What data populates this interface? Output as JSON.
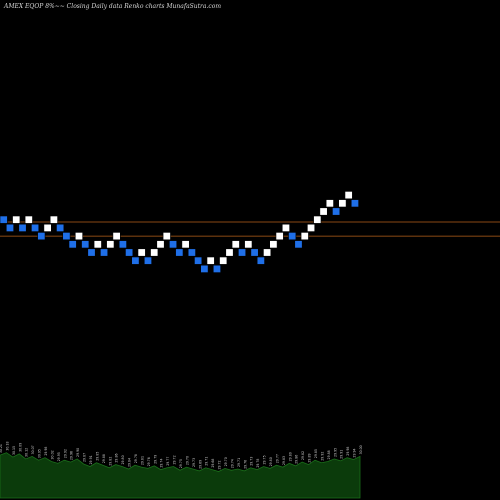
{
  "title": "AMEX  EQOP 8%~~  Closing Daily data  Renko  charts MunafaSutra.com",
  "colors": {
    "background": "#000000",
    "up_brick": "#ffffff",
    "down_brick": "#1f6fe8",
    "brick_edge": "#000000",
    "level_line": "#b8621a",
    "volume_fill": "#0b3b0b",
    "volume_line": "#1a6e1a"
  },
  "chart_data": {
    "type": "renko",
    "bricks": [
      {
        "i": 0,
        "dir": "down",
        "level": 0
      },
      {
        "i": 1,
        "dir": "down",
        "level": -1
      },
      {
        "i": 2,
        "dir": "up",
        "level": 0
      },
      {
        "i": 3,
        "dir": "down",
        "level": -1
      },
      {
        "i": 4,
        "dir": "up",
        "level": 0
      },
      {
        "i": 5,
        "dir": "down",
        "level": -1
      },
      {
        "i": 6,
        "dir": "down",
        "level": -2
      },
      {
        "i": 7,
        "dir": "up",
        "level": -1
      },
      {
        "i": 8,
        "dir": "up",
        "level": 0
      },
      {
        "i": 9,
        "dir": "down",
        "level": -1
      },
      {
        "i": 10,
        "dir": "down",
        "level": -2
      },
      {
        "i": 11,
        "dir": "down",
        "level": -3
      },
      {
        "i": 12,
        "dir": "up",
        "level": -2
      },
      {
        "i": 13,
        "dir": "down",
        "level": -3
      },
      {
        "i": 14,
        "dir": "down",
        "level": -4
      },
      {
        "i": 15,
        "dir": "up",
        "level": -3
      },
      {
        "i": 16,
        "dir": "down",
        "level": -4
      },
      {
        "i": 17,
        "dir": "up",
        "level": -3
      },
      {
        "i": 18,
        "dir": "up",
        "level": -2
      },
      {
        "i": 19,
        "dir": "down",
        "level": -3
      },
      {
        "i": 20,
        "dir": "down",
        "level": -4
      },
      {
        "i": 21,
        "dir": "down",
        "level": -5
      },
      {
        "i": 22,
        "dir": "up",
        "level": -4
      },
      {
        "i": 23,
        "dir": "down",
        "level": -5
      },
      {
        "i": 24,
        "dir": "up",
        "level": -4
      },
      {
        "i": 25,
        "dir": "up",
        "level": -3
      },
      {
        "i": 26,
        "dir": "up",
        "level": -2
      },
      {
        "i": 27,
        "dir": "down",
        "level": -3
      },
      {
        "i": 28,
        "dir": "down",
        "level": -4
      },
      {
        "i": 29,
        "dir": "up",
        "level": -3
      },
      {
        "i": 30,
        "dir": "down",
        "level": -4
      },
      {
        "i": 31,
        "dir": "down",
        "level": -5
      },
      {
        "i": 32,
        "dir": "down",
        "level": -6
      },
      {
        "i": 33,
        "dir": "up",
        "level": -5
      },
      {
        "i": 34,
        "dir": "down",
        "level": -6
      },
      {
        "i": 35,
        "dir": "up",
        "level": -5
      },
      {
        "i": 36,
        "dir": "up",
        "level": -4
      },
      {
        "i": 37,
        "dir": "up",
        "level": -3
      },
      {
        "i": 38,
        "dir": "down",
        "level": -4
      },
      {
        "i": 39,
        "dir": "up",
        "level": -3
      },
      {
        "i": 40,
        "dir": "down",
        "level": -4
      },
      {
        "i": 41,
        "dir": "down",
        "level": -5
      },
      {
        "i": 42,
        "dir": "up",
        "level": -4
      },
      {
        "i": 43,
        "dir": "up",
        "level": -3
      },
      {
        "i": 44,
        "dir": "up",
        "level": -2
      },
      {
        "i": 45,
        "dir": "up",
        "level": -1
      },
      {
        "i": 46,
        "dir": "down",
        "level": -2
      },
      {
        "i": 47,
        "dir": "down",
        "level": -3
      },
      {
        "i": 48,
        "dir": "up",
        "level": -2
      },
      {
        "i": 49,
        "dir": "up",
        "level": -1
      },
      {
        "i": 50,
        "dir": "up",
        "level": 0
      },
      {
        "i": 51,
        "dir": "up",
        "level": 1
      },
      {
        "i": 52,
        "dir": "up",
        "level": 2
      },
      {
        "i": 53,
        "dir": "down",
        "level": 1
      },
      {
        "i": 54,
        "dir": "up",
        "level": 2
      },
      {
        "i": 55,
        "dir": "up",
        "level": 3
      },
      {
        "i": 56,
        "dir": "down",
        "level": 2
      }
    ],
    "level_lines": [
      1,
      -2
    ],
    "volume": [
      68,
      72,
      65,
      70,
      62,
      66,
      60,
      64,
      58,
      55,
      60,
      57,
      62,
      54,
      50,
      56,
      52,
      48,
      53,
      50,
      46,
      52,
      49,
      47,
      51,
      45,
      48,
      50,
      44,
      49,
      46,
      43,
      48,
      45,
      42,
      47,
      44,
      46,
      43,
      48,
      45,
      50,
      47,
      52,
      49,
      55,
      51,
      57,
      53,
      60,
      56,
      58,
      62,
      59,
      64,
      61,
      66
    ],
    "volume_labels": [
      "30.21",
      "30.18",
      "30.15",
      "30.09",
      "30.12",
      "30.07",
      "30.05",
      "29.98",
      "30.02",
      "29.95",
      "29.92",
      "29.96",
      "29.90",
      "29.87",
      "29.91",
      "29.85",
      "29.88",
      "29.82",
      "29.86",
      "29.80",
      "29.84",
      "29.78",
      "29.81",
      "29.76",
      "29.79",
      "29.74",
      "29.77",
      "29.72",
      "29.75",
      "29.70",
      "29.73",
      "29.69",
      "29.71",
      "29.68",
      "29.72",
      "29.70",
      "29.74",
      "29.71",
      "29.76",
      "29.73",
      "29.78",
      "29.75",
      "29.80",
      "29.77",
      "29.83",
      "29.80",
      "29.86",
      "29.82",
      "29.89",
      "29.85",
      "29.92",
      "29.88",
      "29.95",
      "29.91",
      "29.98",
      "29.94",
      "30.00"
    ]
  }
}
